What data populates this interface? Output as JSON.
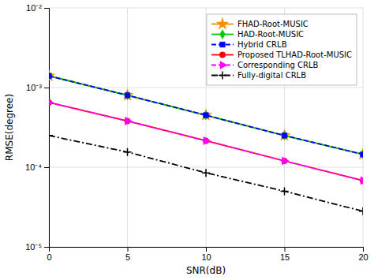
{
  "chart_data": {
    "type": "line",
    "x": [
      0,
      5,
      10,
      15,
      20
    ],
    "series": [
      {
        "name": "FHAD-Root-MUSIC",
        "color": "#FF8C00",
        "marker": "star",
        "line_style": "solid",
        "values": [
          0.0014,
          0.0008,
          0.00045,
          0.00025,
          0.000145
        ]
      },
      {
        "name": "HAD-Root-MUSIC",
        "color": "#00CC00",
        "marker": "diamond",
        "line_style": "solid",
        "values": [
          0.0014,
          0.0008,
          0.00045,
          0.00025,
          0.000145
        ]
      },
      {
        "name": "Hybrid CRLB",
        "color": "#0000FF",
        "marker": "square",
        "line_style": "dashed",
        "values": [
          0.0014,
          0.0008,
          0.00045,
          0.00025,
          0.000145
        ]
      },
      {
        "name": "Proposed TLHAD-Root-MUSIC",
        "color": "#FF0000",
        "marker": "circle",
        "line_style": "solid",
        "values": [
          0.00065,
          0.00038,
          0.000215,
          0.00012,
          6.8e-05
        ]
      },
      {
        "name": "Corresponding CRLB",
        "color": "#FF00FF",
        "marker": "triangle-right",
        "line_style": "dashed",
        "values": [
          0.00065,
          0.00038,
          0.000215,
          0.00012,
          6.8e-05
        ]
      },
      {
        "name": "Fully-digital CRLB",
        "color": "#000000",
        "marker": "plus",
        "line_style": "dash-dot",
        "values": [
          0.00025,
          0.000155,
          8.5e-05,
          5e-05,
          2.8e-05
        ]
      }
    ],
    "xlabel": "SNR(dB)",
    "ylabel": "RMSE(degree)",
    "xlim": [
      0,
      20
    ],
    "ylim": [
      1e-05,
      0.01
    ],
    "xticks": [
      0,
      5,
      10,
      15,
      20
    ],
    "yticks": [
      {
        "value": 1e-05,
        "label": "10⁻⁵"
      },
      {
        "value": 0.0001,
        "label": "10⁻⁴"
      },
      {
        "value": 0.001,
        "label": "10⁻³"
      },
      {
        "value": 0.01,
        "label": "10⁻²"
      }
    ],
    "log": "y",
    "grid": true,
    "legend": "upper right"
  }
}
